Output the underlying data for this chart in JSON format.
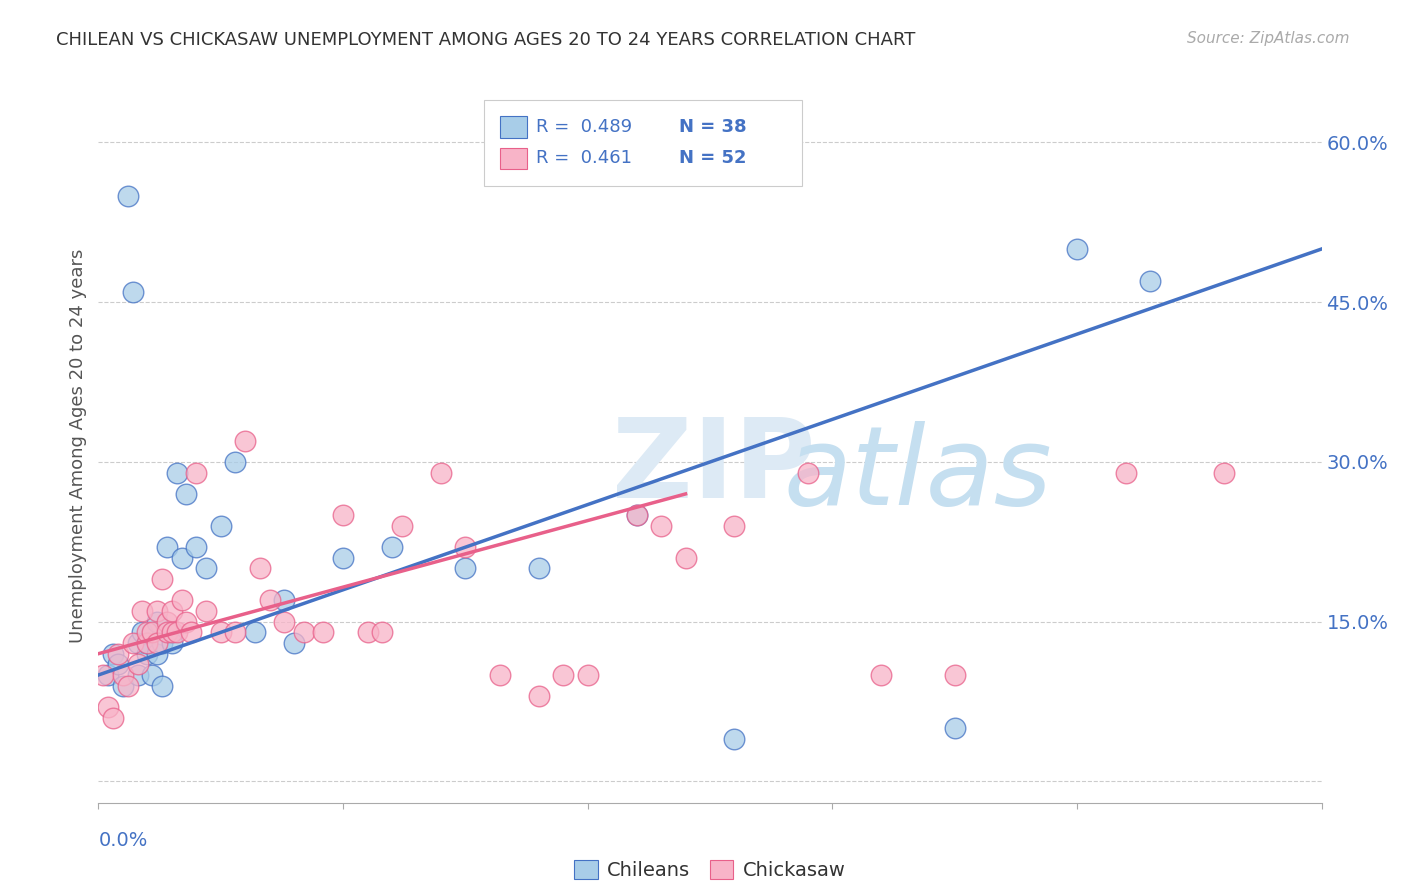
{
  "title": "CHILEAN VS CHICKASAW UNEMPLOYMENT AMONG AGES 20 TO 24 YEARS CORRELATION CHART",
  "source": "Source: ZipAtlas.com",
  "ylabel": "Unemployment Among Ages 20 to 24 years",
  "xlim": [
    0.0,
    0.25
  ],
  "ylim": [
    -0.02,
    0.65
  ],
  "yticks": [
    0.0,
    0.15,
    0.3,
    0.45,
    0.6
  ],
  "ytick_labels": [
    "",
    "15.0%",
    "30.0%",
    "45.0%",
    "60.0%"
  ],
  "chilean_color": "#a8cde8",
  "chickasaw_color": "#f8b4c8",
  "chilean_line_color": "#4472c4",
  "chickasaw_line_color": "#e8608a",
  "text_color": "#4472c4",
  "n_color": "#e85000",
  "chilean_x": [
    0.002,
    0.003,
    0.004,
    0.005,
    0.006,
    0.007,
    0.008,
    0.008,
    0.009,
    0.01,
    0.01,
    0.011,
    0.012,
    0.012,
    0.013,
    0.013,
    0.014,
    0.015,
    0.015,
    0.016,
    0.017,
    0.018,
    0.02,
    0.022,
    0.025,
    0.028,
    0.032,
    0.038,
    0.04,
    0.05,
    0.06,
    0.075,
    0.09,
    0.11,
    0.13,
    0.175,
    0.2,
    0.215
  ],
  "chilean_y": [
    0.1,
    0.12,
    0.11,
    0.09,
    0.55,
    0.46,
    0.13,
    0.1,
    0.14,
    0.12,
    0.13,
    0.1,
    0.15,
    0.12,
    0.09,
    0.13,
    0.22,
    0.14,
    0.13,
    0.29,
    0.21,
    0.27,
    0.22,
    0.2,
    0.24,
    0.3,
    0.14,
    0.17,
    0.13,
    0.21,
    0.22,
    0.2,
    0.2,
    0.25,
    0.04,
    0.05,
    0.5,
    0.47
  ],
  "chickasaw_x": [
    0.001,
    0.002,
    0.003,
    0.004,
    0.005,
    0.006,
    0.007,
    0.008,
    0.009,
    0.01,
    0.01,
    0.011,
    0.012,
    0.012,
    0.013,
    0.014,
    0.014,
    0.015,
    0.015,
    0.016,
    0.017,
    0.018,
    0.019,
    0.02,
    0.022,
    0.025,
    0.028,
    0.03,
    0.033,
    0.035,
    0.038,
    0.042,
    0.046,
    0.05,
    0.055,
    0.058,
    0.062,
    0.07,
    0.075,
    0.082,
    0.09,
    0.095,
    0.1,
    0.11,
    0.115,
    0.12,
    0.13,
    0.145,
    0.16,
    0.175,
    0.21,
    0.23
  ],
  "chickasaw_y": [
    0.1,
    0.07,
    0.06,
    0.12,
    0.1,
    0.09,
    0.13,
    0.11,
    0.16,
    0.13,
    0.14,
    0.14,
    0.13,
    0.16,
    0.19,
    0.15,
    0.14,
    0.14,
    0.16,
    0.14,
    0.17,
    0.15,
    0.14,
    0.29,
    0.16,
    0.14,
    0.14,
    0.32,
    0.2,
    0.17,
    0.15,
    0.14,
    0.14,
    0.25,
    0.14,
    0.14,
    0.24,
    0.29,
    0.22,
    0.1,
    0.08,
    0.1,
    0.1,
    0.25,
    0.24,
    0.21,
    0.24,
    0.29,
    0.1,
    0.1,
    0.29,
    0.29
  ]
}
